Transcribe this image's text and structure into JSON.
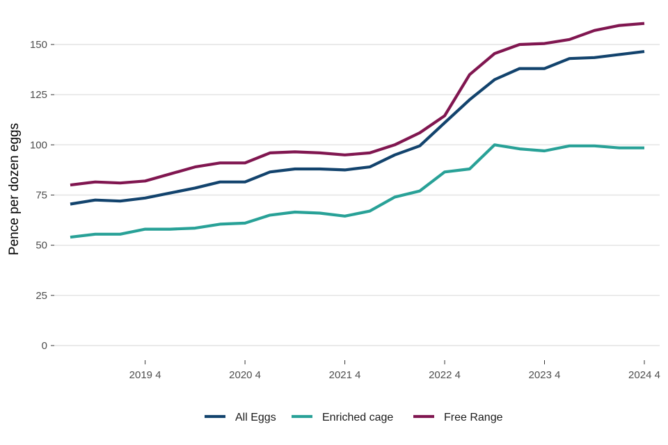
{
  "chart_data": {
    "type": "line",
    "ylabel": "Pence per dozen eggs",
    "xlabel": "",
    "ylim": [
      0,
      165
    ],
    "yticks": [
      0,
      25,
      50,
      75,
      100,
      125,
      150
    ],
    "grid": "horizontal",
    "legend_position": "bottom",
    "x": [
      2018.25,
      2018.5,
      2018.75,
      2019,
      2019.25,
      2019.5,
      2019.75,
      2020,
      2020.25,
      2020.5,
      2020.75,
      2021,
      2021.25,
      2021.5,
      2021.75,
      2022,
      2022.25,
      2022.5,
      2022.75,
      2023,
      2023.25,
      2023.5,
      2023.75,
      2024
    ],
    "xtick_values": [
      2019,
      2020,
      2021,
      2022,
      2023,
      2024
    ],
    "xtick_labels": [
      "2019 4",
      "2020 4",
      "2021 4",
      "2022 4",
      "2023 4",
      "2024 4"
    ],
    "series": [
      {
        "name": "All Eggs",
        "color": "#12436D",
        "values": [
          70.5,
          72.5,
          72,
          73.5,
          76,
          78.5,
          81.5,
          81.5,
          86.5,
          88,
          88,
          87.5,
          89,
          95,
          99.5,
          111,
          122.5,
          132.5,
          138,
          138,
          143,
          143.5,
          145,
          146.5
        ]
      },
      {
        "name": "Enriched cage",
        "color": "#28A197",
        "values": [
          54,
          55.5,
          55.5,
          58,
          58,
          58.5,
          60.5,
          61,
          65,
          66.5,
          66,
          64.5,
          67,
          74,
          77,
          86.5,
          88,
          100,
          98,
          97,
          99.5,
          99.5,
          98.5,
          98.5
        ]
      },
      {
        "name": "Free Range",
        "color": "#801650",
        "values": [
          80,
          81.5,
          81,
          82,
          85.5,
          89,
          91,
          91,
          96,
          96.5,
          96,
          95,
          96,
          100,
          106,
          114.5,
          135,
          145.5,
          150,
          150.5,
          152.5,
          157,
          159.5,
          160.5
        ]
      }
    ]
  }
}
